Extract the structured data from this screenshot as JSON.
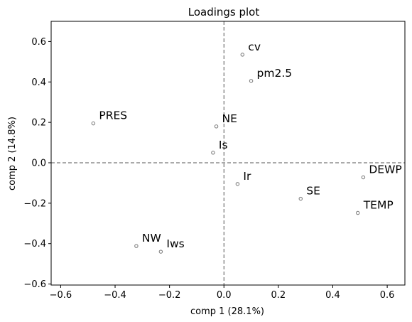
{
  "chart_data": {
    "type": "scatter",
    "title": "Loadings plot",
    "xlabel": "comp 1 (28.1%)",
    "ylabel": "comp 2 (14.8%)",
    "xlim": [
      -0.635,
      0.665
    ],
    "ylim": [
      -0.605,
      0.7
    ],
    "xticks": [
      -0.6,
      -0.4,
      -0.2,
      0.0,
      0.2,
      0.4,
      0.6
    ],
    "yticks": [
      -0.6,
      -0.4,
      -0.2,
      0.0,
      0.2,
      0.4,
      0.6
    ],
    "xtick_labels": [
      "−0.6",
      "−0.4",
      "−0.2",
      "0.0",
      "0.2",
      "0.4",
      "0.6"
    ],
    "ytick_labels": [
      "−0.6",
      "−0.4",
      "−0.2",
      "0.0",
      "0.2",
      "0.4",
      "0.6"
    ],
    "grid": false,
    "reference_lines": {
      "x": 0,
      "y": 0,
      "style": "dashed"
    },
    "marker_color": "#808080",
    "points": [
      {
        "label": "cv",
        "x": 0.068,
        "y": 0.535
      },
      {
        "label": "pm2.5",
        "x": 0.1,
        "y": 0.405
      },
      {
        "label": "PRES",
        "x": -0.48,
        "y": 0.195
      },
      {
        "label": "NE",
        "x": -0.028,
        "y": 0.18
      },
      {
        "label": "Is",
        "x": -0.04,
        "y": 0.05
      },
      {
        "label": "Ir",
        "x": 0.05,
        "y": -0.105
      },
      {
        "label": "DEWP",
        "x": 0.512,
        "y": -0.072
      },
      {
        "label": "SE",
        "x": 0.282,
        "y": -0.178
      },
      {
        "label": "TEMP",
        "x": 0.492,
        "y": -0.248
      },
      {
        "label": "NW",
        "x": -0.322,
        "y": -0.412
      },
      {
        "label": "Iws",
        "x": -0.232,
        "y": -0.44
      }
    ]
  }
}
